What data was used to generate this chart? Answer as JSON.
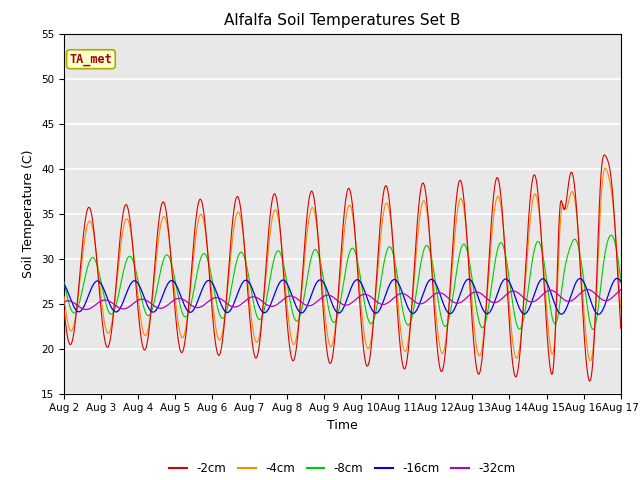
{
  "title": "Alfalfa Soil Temperatures Set B",
  "xlabel": "Time",
  "ylabel": "Soil Temperature (C)",
  "ylim": [
    15,
    55
  ],
  "yticks": [
    15,
    20,
    25,
    30,
    35,
    40,
    45,
    50,
    55
  ],
  "xtick_labels": [
    "Aug 2",
    "Aug 3",
    "Aug 4",
    "Aug 5",
    "Aug 6",
    "Aug 7",
    "Aug 8",
    "Aug 9",
    "Aug 10",
    "Aug 11",
    "Aug 12",
    "Aug 13",
    "Aug 14",
    "Aug 15",
    "Aug 16",
    "Aug 17"
  ],
  "legend_labels": [
    "-2cm",
    "-4cm",
    "-8cm",
    "-16cm",
    "-32cm"
  ],
  "line_colors": [
    "#dd0000",
    "#ff8800",
    "#00cc00",
    "#0000ee",
    "#bb00bb"
  ],
  "annotation_text": "TA_met",
  "annotation_color": "#aa0000",
  "annotation_bg": "#ffffcc",
  "annotation_border": "#aaaa00",
  "background_color": "#e8e8e8",
  "title_fontsize": 11,
  "axis_label_fontsize": 9,
  "tick_fontsize": 7.5,
  "legend_fontsize": 8.5
}
